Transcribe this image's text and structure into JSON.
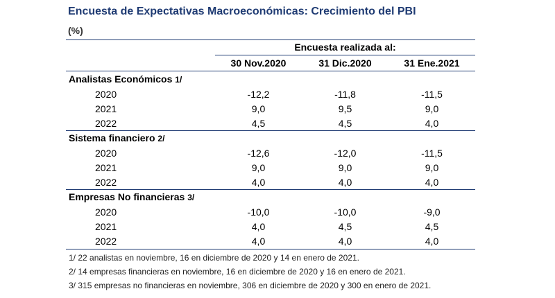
{
  "title": "Encuesta de Expectativas Macroeconómicas: Crecimiento del PBI",
  "unit": "(%)",
  "header": {
    "survey_label": "Encuesta realizada al:",
    "columns": [
      "30 Nov.2020",
      "31 Dic.2020",
      "31 Ene.2021"
    ]
  },
  "sections": [
    {
      "name": "Analistas Económicos",
      "note": "1/",
      "rows": [
        {
          "year": "2020",
          "values": [
            "-12,2",
            "-11,8",
            "-11,5"
          ]
        },
        {
          "year": "2021",
          "values": [
            "9,0",
            "9,5",
            "9,0"
          ]
        },
        {
          "year": "2022",
          "values": [
            "4,5",
            "4,5",
            "4,0"
          ]
        }
      ]
    },
    {
      "name": "Sistema financiero",
      "note": "2/",
      "rows": [
        {
          "year": "2020",
          "values": [
            "-12,6",
            "-12,0",
            "-11,5"
          ]
        },
        {
          "year": "2021",
          "values": [
            "9,0",
            "9,0",
            "9,0"
          ]
        },
        {
          "year": "2022",
          "values": [
            "4,0",
            "4,0",
            "4,0"
          ]
        }
      ]
    },
    {
      "name": "Empresas No financieras",
      "note": "3/",
      "rows": [
        {
          "year": "2020",
          "values": [
            "-10,0",
            "-10,0",
            "-9,0"
          ]
        },
        {
          "year": "2021",
          "values": [
            "4,0",
            "4,5",
            "4,5"
          ]
        },
        {
          "year": "2022",
          "values": [
            "4,0",
            "4,0",
            "4,0"
          ]
        }
      ]
    }
  ],
  "footnotes": [
    "1/  22 analistas en noviembre, 16 en diciembre de 2020 y 14 en enero de 2021.",
    "2/  14 empresas financieras en noviembre, 16 en diciembre de 2020 y 16 en enero de 2021.",
    "3/  315 empresas no financieras en noviembre, 306 en diciembre de 2020 y 300 en enero de 2021."
  ]
}
